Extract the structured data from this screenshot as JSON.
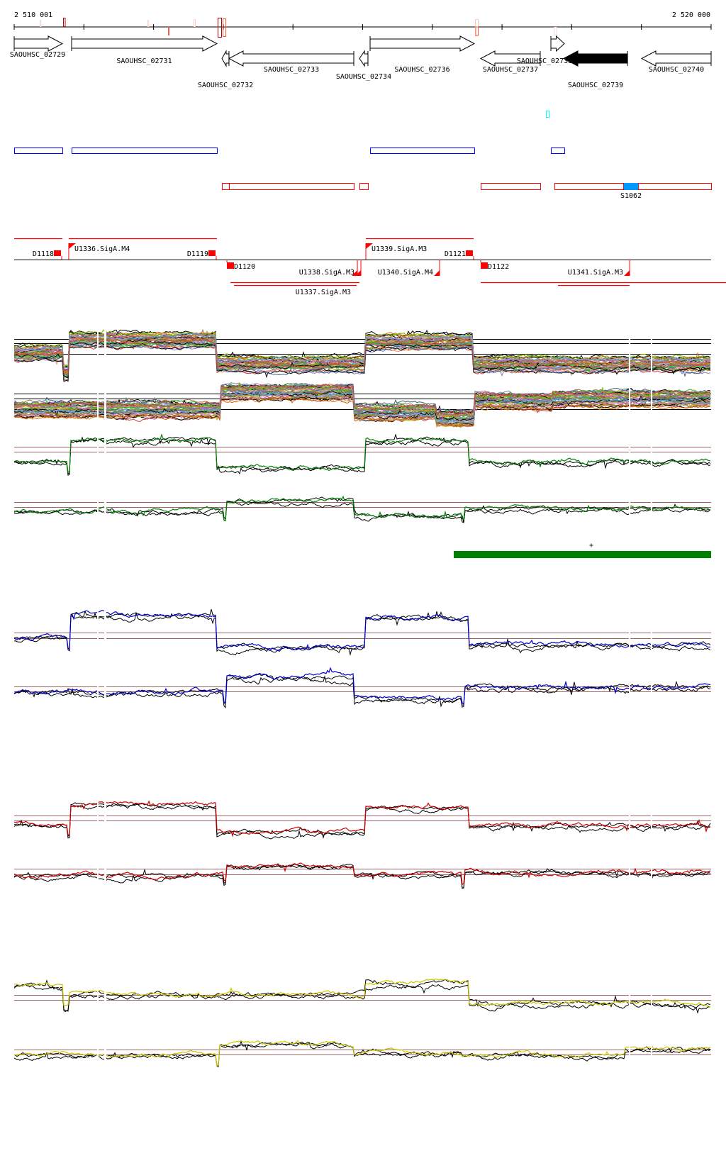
{
  "ruler": {
    "start_label": "2 510 001",
    "end_label": "2 520 000",
    "start_bp": 2510001,
    "end_bp": 2520000,
    "tick_interval_bp": 1000
  },
  "colors": {
    "feature_red": "#ff0000",
    "box_blue": "#0000ff",
    "cyan": "#00ffff",
    "s_fill": "#0099ff",
    "ref_line": "#a06464",
    "green": "#008000",
    "blue": "#0000cc",
    "red": "#cc0000",
    "yellow": "#c8c800"
  },
  "genes": [
    {
      "name": "SAOUHSC_02729",
      "start": 0,
      "end": 692,
      "strand": "+",
      "row": 1,
      "label_row": 1,
      "filled": false
    },
    {
      "name": "SAOUHSC_02731",
      "start": 824,
      "end": 2909,
      "strand": "+",
      "row": 1,
      "label_row": 2,
      "filled": false
    },
    {
      "name": "SAOUHSC_02732",
      "start": 2981,
      "end": 3082,
      "strand": "-",
      "row": 2,
      "label_row": 5,
      "filled": false
    },
    {
      "name": "SAOUHSC_02733",
      "start": 3082,
      "end": 4873,
      "strand": "-",
      "row": 2,
      "label_row": 3,
      "filled": false
    },
    {
      "name": "SAOUHSC_02734",
      "start": 4954,
      "end": 5076,
      "strand": "-",
      "row": 2,
      "label_row": 4,
      "filled": false
    },
    {
      "name": "SAOUHSC_02736",
      "start": 5107,
      "end": 6602,
      "strand": "+",
      "row": 1,
      "label_row": 3,
      "filled": false
    },
    {
      "name": "SAOUHSC_02737",
      "start": 6694,
      "end": 7548,
      "strand": "-",
      "row": 2,
      "label_row": 3,
      "filled": false
    },
    {
      "name": "SAOUHSC_02738",
      "start": 7701,
      "end": 7894,
      "strand": "+",
      "row": 1,
      "label_row": 2,
      "filled": false
    },
    {
      "name": "SAOUHSC_02739",
      "start": 7884,
      "end": 8800,
      "strand": "-",
      "row": 2,
      "label_row": 5,
      "filled": true
    },
    {
      "name": "SAOUHSC_02740",
      "start": 9003,
      "end": 10000,
      "strand": "-",
      "row": 2,
      "label_row": 3,
      "filled": false
    }
  ],
  "blue_features": [
    [
      0,
      692
    ],
    [
      824,
      2909
    ],
    [
      5107,
      6602
    ],
    [
      7701,
      7894
    ]
  ],
  "cyan_features": [
    [
      7640,
      7680
    ]
  ],
  "red_features": [
    [
      2981,
      3082
    ],
    [
      3082,
      4873
    ],
    [
      4954,
      5076
    ],
    [
      6694,
      7548
    ],
    [
      7751,
      8739
    ],
    [
      8953,
      10000
    ]
  ],
  "segment_label": {
    "name": "S1062",
    "start": 8749,
    "end": 8953
  },
  "promoters": {
    "upstream_flags": [
      {
        "label": "D1118",
        "kind": "D",
        "strand": "+",
        "pos": 682
      },
      {
        "label": "U1336.SigA.M4",
        "kind": "U",
        "strand": "+",
        "pos": 783
      },
      {
        "label": "D1119",
        "kind": "D",
        "strand": "+",
        "pos": 2899
      },
      {
        "label": "U1339.SigA.M3",
        "kind": "U",
        "strand": "+",
        "pos": 5046
      },
      {
        "label": "D1121",
        "kind": "D",
        "strand": "+",
        "pos": 6592
      }
    ],
    "downstream_flags": [
      {
        "label": "D1120",
        "kind": "D",
        "strand": "-",
        "pos": 3052
      },
      {
        "label": "U1337.SigA.M3",
        "kind": "U",
        "strand": "-",
        "pos": 4924
      },
      {
        "label": "U1338.SigA.M3",
        "kind": "U",
        "strand": "-",
        "pos": 4975
      },
      {
        "label": "U1340.SigA.M4",
        "kind": "U",
        "strand": "-",
        "pos": 6104
      },
      {
        "label": "D1122",
        "kind": "D",
        "strand": "-",
        "pos": 6694
      },
      {
        "label": "U1341.SigA.M3",
        "kind": "U",
        "strand": "-",
        "pos": 8831
      }
    ]
  },
  "annotation_bar": {
    "start": 6307,
    "end": 10000,
    "marker": "+"
  },
  "chart_data": {
    "type": "line",
    "tracks": [
      {
        "name": "multi-condition-plus",
        "color": "multi",
        "lines": 42,
        "profile": [
          [
            0,
            0.55
          ],
          [
            692,
            0.1
          ],
          [
            793,
            0.85
          ],
          [
            2899,
            0.3
          ],
          [
            5036,
            0.8
          ],
          [
            6592,
            0.3
          ],
          [
            10000,
            0.32
          ]
        ]
      },
      {
        "name": "multi-condition-minus",
        "color": "multi",
        "lines": 42,
        "profile": [
          [
            0,
            0.35
          ],
          [
            2950,
            0.3
          ],
          [
            2960,
            0.75
          ],
          [
            4883,
            0.3
          ],
          [
            6053,
            0.15
          ],
          [
            6612,
            0.55
          ],
          [
            7731,
            0.6
          ],
          [
            10000,
            0.75
          ]
        ]
      },
      {
        "name": "green-plus",
        "color": "green",
        "profile": [
          [
            0,
            0.35
          ],
          [
            763,
            0.1
          ],
          [
            804,
            0.85
          ],
          [
            2899,
            0.2
          ],
          [
            5036,
            0.85
          ],
          [
            6511,
            0.35
          ],
          [
            10000,
            0.4
          ]
        ]
      },
      {
        "name": "green-minus",
        "color": "green",
        "profile": [
          [
            0,
            0.45
          ],
          [
            3001,
            0.25
          ],
          [
            3050,
            0.7
          ],
          [
            4883,
            0.35
          ],
          [
            6409,
            0.2
          ],
          [
            6450,
            0.5
          ],
          [
            10000,
            0.8
          ]
        ]
      },
      {
        "name": "blue-plus",
        "color": "blue",
        "profile": [
          [
            0,
            0.4
          ],
          [
            763,
            0.15
          ],
          [
            804,
            0.9
          ],
          [
            2899,
            0.2
          ],
          [
            5036,
            0.85
          ],
          [
            6511,
            0.25
          ],
          [
            10000,
            0.35
          ]
        ]
      },
      {
        "name": "blue-minus",
        "color": "blue",
        "profile": [
          [
            0,
            0.45
          ],
          [
            3001,
            0.2
          ],
          [
            3050,
            0.75
          ],
          [
            4883,
            0.3
          ],
          [
            6409,
            0.15
          ],
          [
            6450,
            0.55
          ],
          [
            10000,
            0.8
          ]
        ]
      },
      {
        "name": "red-plus",
        "color": "red",
        "profile": [
          [
            0,
            0.4
          ],
          [
            763,
            0.15
          ],
          [
            804,
            0.85
          ],
          [
            2899,
            0.2
          ],
          [
            5036,
            0.8
          ],
          [
            6511,
            0.35
          ],
          [
            10000,
            0.4
          ]
        ]
      },
      {
        "name": "red-minus",
        "color": "red",
        "profile": [
          [
            0,
            0.5
          ],
          [
            3001,
            0.3
          ],
          [
            3050,
            0.7
          ],
          [
            4883,
            0.5
          ],
          [
            6409,
            0.2
          ],
          [
            6450,
            0.55
          ],
          [
            10000,
            0.7
          ]
        ]
      },
      {
        "name": "yellow-plus",
        "color": "yellow",
        "profile": [
          [
            0,
            0.8
          ],
          [
            692,
            0.3
          ],
          [
            793,
            0.6
          ],
          [
            5036,
            0.85
          ],
          [
            6511,
            0.4
          ],
          [
            10000,
            0.45
          ]
        ]
      },
      {
        "name": "yellow-minus",
        "color": "yellow",
        "profile": [
          [
            0,
            0.55
          ],
          [
            2899,
            0.3
          ],
          [
            2950,
            0.8
          ],
          [
            4883,
            0.6
          ],
          [
            6409,
            0.55
          ],
          [
            8749,
            0.7
          ],
          [
            10000,
            0.72
          ]
        ]
      }
    ]
  }
}
